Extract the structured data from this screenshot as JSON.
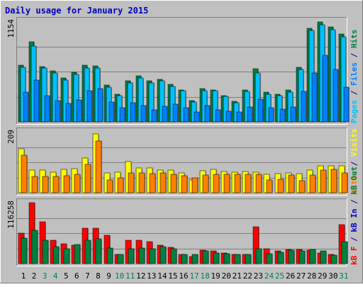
{
  "chart_data": {
    "type": "bar",
    "title": "Daily usage for January 2015",
    "days": [
      {
        "label": "1",
        "weekend": false
      },
      {
        "label": "2",
        "weekend": false
      },
      {
        "label": "3",
        "weekend": true
      },
      {
        "label": "4",
        "weekend": true
      },
      {
        "label": "5",
        "weekend": false
      },
      {
        "label": "6",
        "weekend": false
      },
      {
        "label": "7",
        "weekend": false
      },
      {
        "label": "8",
        "weekend": false
      },
      {
        "label": "9",
        "weekend": false
      },
      {
        "label": "10",
        "weekend": true
      },
      {
        "label": "11",
        "weekend": true
      },
      {
        "label": "12",
        "weekend": false
      },
      {
        "label": "13",
        "weekend": false
      },
      {
        "label": "14",
        "weekend": false
      },
      {
        "label": "15",
        "weekend": false
      },
      {
        "label": "16",
        "weekend": false
      },
      {
        "label": "17",
        "weekend": true
      },
      {
        "label": "18",
        "weekend": true
      },
      {
        "label": "19",
        "weekend": false
      },
      {
        "label": "20",
        "weekend": false
      },
      {
        "label": "21",
        "weekend": false
      },
      {
        "label": "22",
        "weekend": false
      },
      {
        "label": "23",
        "weekend": false
      },
      {
        "label": "24",
        "weekend": true
      },
      {
        "label": "25",
        "weekend": true
      },
      {
        "label": "26",
        "weekend": false
      },
      {
        "label": "27",
        "weekend": false
      },
      {
        "label": "28",
        "weekend": false
      },
      {
        "label": "29",
        "weekend": false
      },
      {
        "label": "30",
        "weekend": false
      },
      {
        "label": "31",
        "weekend": true
      }
    ],
    "panels": [
      {
        "id": "hits-files-pages",
        "max_label": "1154",
        "ymax": 1154,
        "legend": [
          {
            "text": "Pages",
            "color": "#00c0ff"
          },
          {
            "text": " / ",
            "color": "#000080"
          },
          {
            "text": "Files",
            "color": "#0080ff"
          },
          {
            "text": " / ",
            "color": "#000080"
          },
          {
            "text": "Hits",
            "color": "#008040"
          }
        ],
        "series": [
          {
            "name": "Hits",
            "color": "#008040",
            "values": [
              654,
              920,
              633,
              586,
              502,
              566,
              654,
              640,
              419,
              314,
              468,
              528,
              468,
              491,
              428,
              368,
              247,
              380,
              368,
              297,
              236,
              368,
              606,
              340,
              318,
              368,
              624,
              1074,
              1145,
              1093,
              1005
            ]
          },
          {
            "name": "Files",
            "color": "#00c0ff",
            "values": [
              624,
              869,
              620,
              560,
              482,
              541,
              620,
              620,
              400,
              303,
              450,
              500,
              450,
              468,
              410,
              360,
              227,
              360,
              357,
              290,
              220,
              350,
              560,
              320,
              300,
              345,
              604,
              1045,
              1115,
              1053,
              977
            ]
          },
          {
            "name": "Pages",
            "color": "#0080ff",
            "values": [
              340,
              480,
              303,
              240,
              209,
              250,
              355,
              380,
              229,
              160,
              220,
              190,
              140,
              180,
              200,
              159,
              110,
              190,
              140,
              120,
              110,
              170,
              260,
              160,
              150,
              170,
              350,
              560,
              760,
              600,
              400
            ]
          }
        ]
      },
      {
        "id": "visits-sites",
        "max_label": "209",
        "ymax": 209,
        "legend": [
          {
            "text": "Sites",
            "color": "#ff8000"
          },
          {
            "text": " / ",
            "color": "#000080"
          },
          {
            "text": "Visits",
            "color": "#ffff00"
          }
        ],
        "series": [
          {
            "name": "Visits",
            "color": "#ffff00",
            "values": [
              150,
              77,
              77,
              71,
              81,
              83,
              119,
              201,
              68,
              70,
              108,
              84,
              84,
              77,
              77,
              67,
              43,
              75,
              81,
              74,
              70,
              72,
              71,
              64,
              65,
              69,
              66,
              77,
              92,
              93,
              93
            ]
          },
          {
            "name": "Sites",
            "color": "#ff8000",
            "values": [
              130,
              57,
              57,
              56,
              59,
              64,
              96,
              178,
              44,
              50,
              68,
              68,
              66,
              67,
              63,
              59,
              51,
              60,
              63,
              63,
              62,
              62,
              62,
              44,
              47,
              60,
              42,
              60,
              77,
              81,
              69
            ]
          }
        ]
      },
      {
        "id": "kb-in-out",
        "max_label": "116258",
        "ymax": 116258,
        "legend": [
          {
            "text": "kB F",
            "color": "#ff0000"
          },
          {
            "text": " / ",
            "color": "#000080"
          },
          {
            "text": "kB In",
            "color": "#0000c0"
          },
          {
            "text": " / ",
            "color": "#000080"
          },
          {
            "text": "kB Out",
            "color": "#008040"
          }
        ],
        "series": [
          {
            "name": "kB F",
            "color": "#ff0000",
            "values": [
              58500,
              116258,
              79600,
              44500,
              38000,
              34500,
              67500,
              68000,
              53500,
              17000,
              44000,
              44500,
              42000,
              34500,
              31500,
              17500,
              14000,
              25800,
              24000,
              20500,
              18000,
              18000,
              70000,
              28000,
              24000,
              27500,
              27500,
              26000,
              20000,
              18000,
              75000
            ]
          },
          {
            "name": "kB In",
            "color": "#0000c0",
            "values": [
              0,
              0,
              0,
              0,
              0,
              0,
              0,
              0,
              0,
              0,
              0,
              0,
              0,
              0,
              0,
              0,
              0,
              0,
              0,
              0,
              0,
              0,
              0,
              0,
              0,
              0,
              0,
              0,
              0,
              0,
              0
            ]
          },
          {
            "name": "kB Out",
            "color": "#008040",
            "values": [
              48500,
              64000,
              44000,
              33000,
              29000,
              37000,
              45000,
              47500,
              30000,
              17000,
              28500,
              30000,
              28500,
              32000,
              28000,
              17500,
              17000,
              24000,
              20000,
              19500,
              18000,
              18000,
              28500,
              19000,
              21000,
              25500,
              25000,
              27000,
              25000,
              16000,
              42500
            ]
          }
        ]
      }
    ]
  }
}
